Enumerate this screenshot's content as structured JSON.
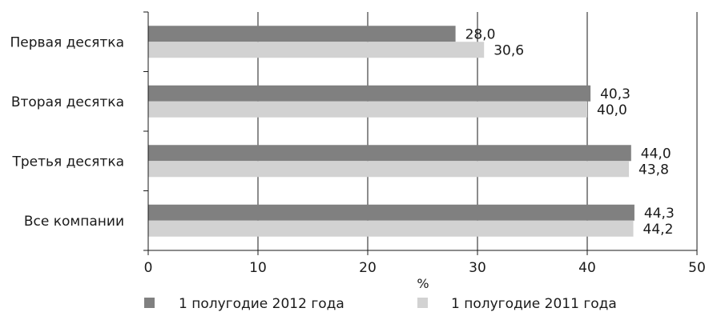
{
  "chart_data": {
    "type": "bar",
    "orientation": "horizontal",
    "categories": [
      "Первая десятка",
      "Вторая десятка",
      "Третья десятка",
      "Все компании"
    ],
    "series": [
      {
        "name": "1 полугодие 2012 года",
        "values": [
          28.0,
          40.3,
          44.0,
          44.3
        ],
        "labels": [
          "28,0",
          "40,3",
          "44,0",
          "44,3"
        ],
        "color": "#808080"
      },
      {
        "name": "1 полугодие 2011 года",
        "values": [
          30.6,
          40.0,
          43.8,
          44.2
        ],
        "labels": [
          "30,6",
          "40,0",
          "43,8",
          "44,2"
        ],
        "color": "#d2d2d2"
      }
    ],
    "xlabel": "%",
    "xlim": [
      0,
      50
    ],
    "xticks": [
      0,
      10,
      20,
      30,
      40,
      50
    ],
    "xtick_labels": [
      "0",
      "10",
      "20",
      "30",
      "40",
      "50"
    ],
    "grid": "vertical",
    "legend_position": "bottom"
  }
}
